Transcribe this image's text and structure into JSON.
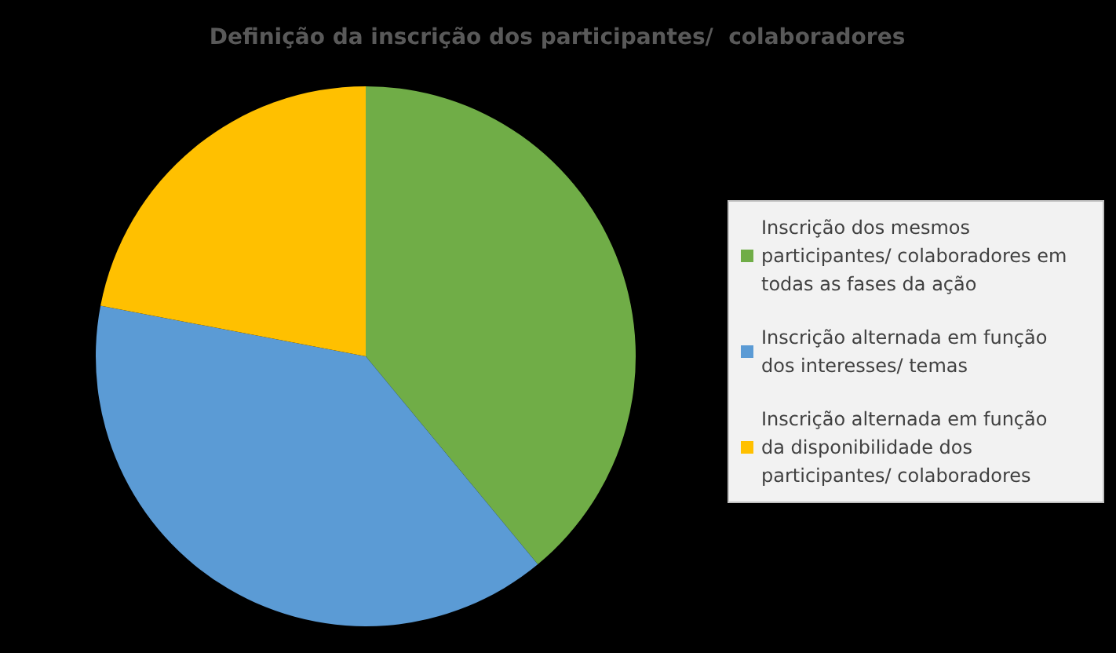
{
  "chart_data": {
    "type": "pie",
    "title": "Definição da inscrição dos participantes/  colaboradores",
    "categories": [
      "Inscrição dos mesmos participantes/ colaboradores em todas as fases da ação",
      "Inscrição alternada em função dos interesses/ temas",
      "Inscrição alternada em função da disponibilidade dos participantes/ colaboradores"
    ],
    "values": [
      39,
      39,
      22
    ],
    "colors": [
      "#70ad47",
      "#5b9bd5",
      "#ffc000"
    ],
    "legend": "right"
  }
}
